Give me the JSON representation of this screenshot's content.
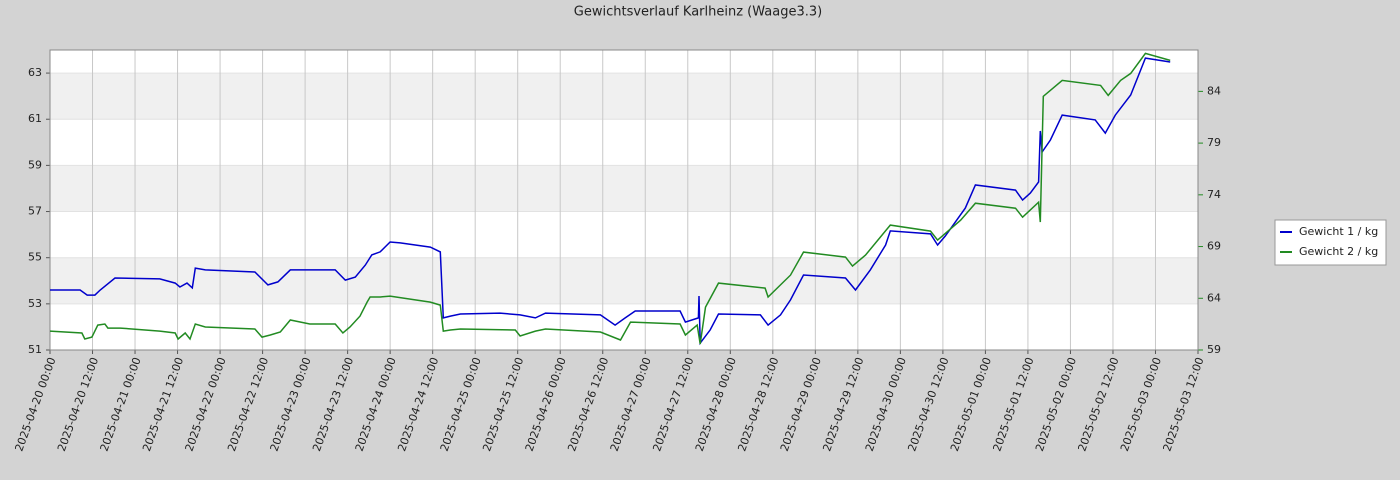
{
  "chart_data": {
    "type": "line",
    "title": "Gewichtsverlauf Karlheinz (Waage3.3)",
    "xlim": [
      "2025-04-20 00:00",
      "2025-05-03 12:00"
    ],
    "xticks": [
      "2025-04-20 00:00",
      "2025-04-20 12:00",
      "2025-04-21 00:00",
      "2025-04-21 12:00",
      "2025-04-22 00:00",
      "2025-04-22 12:00",
      "2025-04-23 00:00",
      "2025-04-23 12:00",
      "2025-04-24 00:00",
      "2025-04-24 12:00",
      "2025-04-25 00:00",
      "2025-04-25 12:00",
      "2025-04-26 00:00",
      "2025-04-26 12:00",
      "2025-04-27 00:00",
      "2025-04-27 12:00",
      "2025-04-28 00:00",
      "2025-04-28 12:00",
      "2025-04-29 00:00",
      "2025-04-29 12:00",
      "2025-04-30 00:00",
      "2025-04-30 12:00",
      "2025-05-01 00:00",
      "2025-05-01 12:00",
      "2025-05-02 00:00",
      "2025-05-02 12:00",
      "2025-05-03 00:00",
      "2025-05-03 12:00"
    ],
    "ylim": [
      51,
      64
    ],
    "yticks": [
      51,
      53,
      55,
      57,
      59,
      61,
      63
    ],
    "y2lim": [
      59,
      88
    ],
    "y2ticks": [
      59,
      64,
      69,
      74,
      79,
      84
    ],
    "y2_color": "#228b22",
    "grid": true,
    "legend": "right",
    "series": [
      {
        "name": "Gewicht 1 / kg",
        "color": "#0000cc",
        "x": [
          "2025-04-20 00:00",
          "2025-04-20 08:30",
          "2025-04-20 10:30",
          "2025-04-20 12:40",
          "2025-04-20 14:10",
          "2025-04-20 18:20",
          "2025-04-21 07:00",
          "2025-04-21 11:20",
          "2025-04-21 12:40",
          "2025-04-21 14:40",
          "2025-04-21 16:10",
          "2025-04-21 17:00",
          "2025-04-21 19:50",
          "2025-04-22 09:50",
          "2025-04-22 13:30",
          "2025-04-22 16:20",
          "2025-04-22 19:50",
          "2025-04-23 08:30",
          "2025-04-23 11:20",
          "2025-04-23 14:10",
          "2025-04-23 17:00",
          "2025-04-23 18:50",
          "2025-04-23 21:10",
          "2025-04-24 00:00",
          "2025-04-24 02:50",
          "2025-04-24 11:20",
          "2025-04-24 14:10",
          "2025-04-24 15:00",
          "2025-04-24 17:00",
          "2025-04-24 19:50",
          "2025-04-25 07:00",
          "2025-04-25 12:40",
          "2025-04-25 17:00",
          "2025-04-25 19:50",
          "2025-04-26 11:20",
          "2025-04-26 15:30",
          "2025-04-26 18:20",
          "2025-04-26 21:10",
          "2025-04-27 09:50",
          "2025-04-27 11:20",
          "2025-04-27 15:00",
          "2025-04-27 15:10",
          "2025-04-27 15:30",
          "2025-04-27 18:20",
          "2025-04-27 20:40",
          "2025-04-28 08:30",
          "2025-04-28 10:40",
          "2025-04-28 14:10",
          "2025-04-28 17:00",
          "2025-04-28 20:40",
          "2025-04-29 08:30",
          "2025-04-29 11:20",
          "2025-04-29 15:30",
          "2025-04-29 19:50",
          "2025-04-29 21:10",
          "2025-04-30 08:30",
          "2025-04-30 10:30",
          "2025-04-30 12:40",
          "2025-04-30 18:20",
          "2025-04-30 21:10",
          "2025-05-01 08:30",
          "2025-05-01 10:30",
          "2025-05-01 12:40",
          "2025-05-01 15:00",
          "2025-05-01 15:30",
          "2025-05-01 16:00",
          "2025-05-01 18:20",
          "2025-05-01 21:40",
          "2025-05-02 07:00",
          "2025-05-02 09:50",
          "2025-05-02 12:40",
          "2025-05-02 17:00",
          "2025-05-02 21:10",
          "2025-05-03 04:10"
        ],
        "values": [
          53.6,
          53.6,
          53.38,
          53.38,
          53.6,
          54.12,
          54.08,
          53.9,
          53.73,
          53.9,
          53.69,
          54.55,
          54.47,
          54.38,
          53.82,
          53.95,
          54.47,
          54.47,
          54.03,
          54.16,
          54.68,
          55.12,
          55.25,
          55.68,
          55.64,
          55.46,
          55.25,
          52.39,
          52.47,
          52.56,
          52.6,
          52.52,
          52.39,
          52.6,
          52.52,
          52.08,
          52.39,
          52.69,
          52.69,
          52.21,
          52.39,
          53.34,
          51.3,
          51.87,
          52.56,
          52.52,
          52.08,
          52.52,
          53.17,
          54.25,
          54.12,
          53.6,
          54.47,
          55.55,
          56.16,
          56.03,
          55.55,
          55.94,
          57.15,
          58.15,
          57.93,
          57.5,
          57.8,
          58.28,
          60.49,
          59.58,
          60.1,
          61.18,
          60.97,
          60.4,
          61.18,
          62.05,
          63.65,
          63.48
        ]
      },
      {
        "name": "Gewicht 2 / kg",
        "color": "#228b22",
        "axis": "y2",
        "x": [
          "2025-04-20 00:00",
          "2025-04-20 09:00",
          "2025-04-20 09:50",
          "2025-04-20 11:50",
          "2025-04-20 13:30",
          "2025-04-20 15:30",
          "2025-04-20 16:20",
          "2025-04-20 19:50",
          "2025-04-21 07:00",
          "2025-04-21 11:20",
          "2025-04-21 12:10",
          "2025-04-21 14:10",
          "2025-04-21 15:30",
          "2025-04-21 17:00",
          "2025-04-21 19:50",
          "2025-04-22 09:50",
          "2025-04-22 11:50",
          "2025-04-22 14:10",
          "2025-04-22 17:00",
          "2025-04-22 19:50",
          "2025-04-23 01:20",
          "2025-04-23 08:30",
          "2025-04-23 10:40",
          "2025-04-23 12:40",
          "2025-04-23 15:30",
          "2025-04-23 17:30",
          "2025-04-23 18:20",
          "2025-04-23 21:10",
          "2025-04-24 00:00",
          "2025-04-24 11:20",
          "2025-04-24 14:10",
          "2025-04-24 15:00",
          "2025-04-24 17:00",
          "2025-04-24 19:50",
          "2025-04-25 11:20",
          "2025-04-25 12:40",
          "2025-04-25 17:00",
          "2025-04-25 19:50",
          "2025-04-26 11:20",
          "2025-04-26 17:00",
          "2025-04-26 19:50",
          "2025-04-27 09:50",
          "2025-04-27 11:20",
          "2025-04-27 14:40",
          "2025-04-27 15:30",
          "2025-04-27 17:00",
          "2025-04-27 20:40",
          "2025-04-28 09:50",
          "2025-04-28 10:40",
          "2025-04-28 17:00",
          "2025-04-28 20:40",
          "2025-04-29 08:30",
          "2025-04-29 10:30",
          "2025-04-29 14:10",
          "2025-04-29 21:10",
          "2025-04-30 08:30",
          "2025-04-30 10:30",
          "2025-04-30 17:00",
          "2025-04-30 21:10",
          "2025-05-01 08:30",
          "2025-05-01 10:30",
          "2025-05-01 15:00",
          "2025-05-01 15:30",
          "2025-05-01 16:20",
          "2025-05-01 21:40",
          "2025-05-02 08:30",
          "2025-05-02 10:40",
          "2025-05-02 14:10",
          "2025-05-02 17:00",
          "2025-05-02 21:10",
          "2025-05-03 04:10"
        ],
        "values": [
          60.83,
          60.64,
          60.06,
          60.25,
          61.41,
          61.51,
          61.12,
          61.12,
          60.83,
          60.64,
          60.06,
          60.64,
          60.06,
          61.51,
          61.22,
          61.03,
          60.25,
          60.45,
          60.74,
          61.9,
          61.51,
          61.51,
          60.64,
          61.22,
          62.28,
          63.63,
          64.12,
          64.12,
          64.21,
          63.63,
          63.34,
          60.83,
          60.93,
          61.03,
          60.93,
          60.35,
          60.83,
          61.03,
          60.74,
          59.97,
          61.7,
          61.51,
          60.45,
          61.41,
          59.58,
          63.15,
          65.47,
          64.98,
          64.12,
          66.24,
          68.46,
          67.98,
          67.11,
          68.17,
          71.07,
          70.49,
          69.62,
          71.55,
          73.19,
          72.71,
          71.84,
          73.29,
          71.36,
          83.52,
          85.06,
          84.58,
          83.61,
          85.06,
          85.74,
          87.67,
          86.99
        ]
      }
    ]
  }
}
